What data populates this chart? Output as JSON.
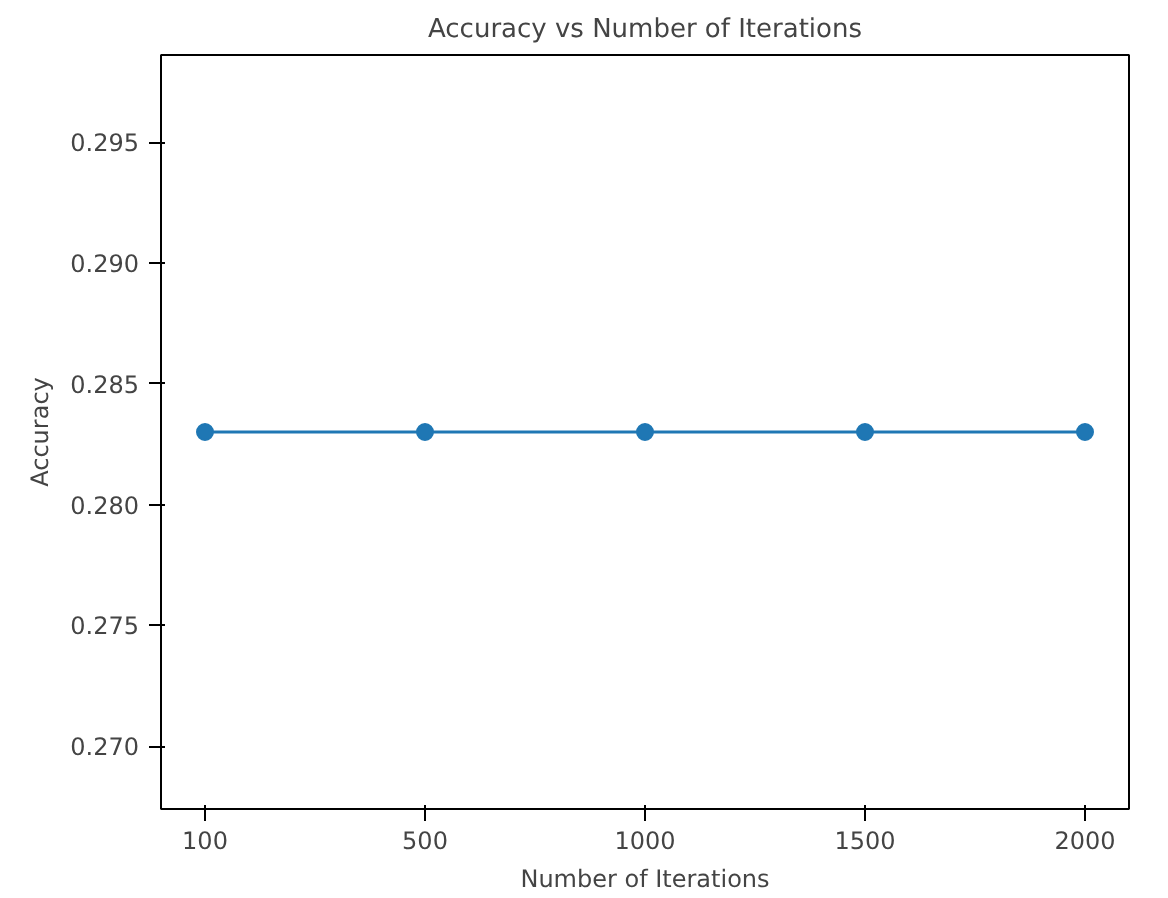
{
  "chart_data": {
    "type": "line",
    "title": "Accuracy vs Number of Iterations",
    "xlabel": "Number of Iterations",
    "ylabel": "Accuracy",
    "categories": [
      "100",
      "500",
      "1000",
      "1500",
      "2000"
    ],
    "series": [
      {
        "color": "#1f77b4",
        "values": [
          0.283,
          0.283,
          0.283,
          0.283,
          0.283
        ]
      }
    ],
    "ylim": [
      0.2674,
      0.2986
    ],
    "yticks": [
      {
        "value": 0.27,
        "label": "0.270"
      },
      0.275,
      {
        "value": 0.28,
        "label": "0.280"
      },
      0.285,
      {
        "value": 0.29,
        "label": "0.290"
      },
      0.295
    ],
    "marker": "circle",
    "line_style": "solid",
    "grid": false
  }
}
